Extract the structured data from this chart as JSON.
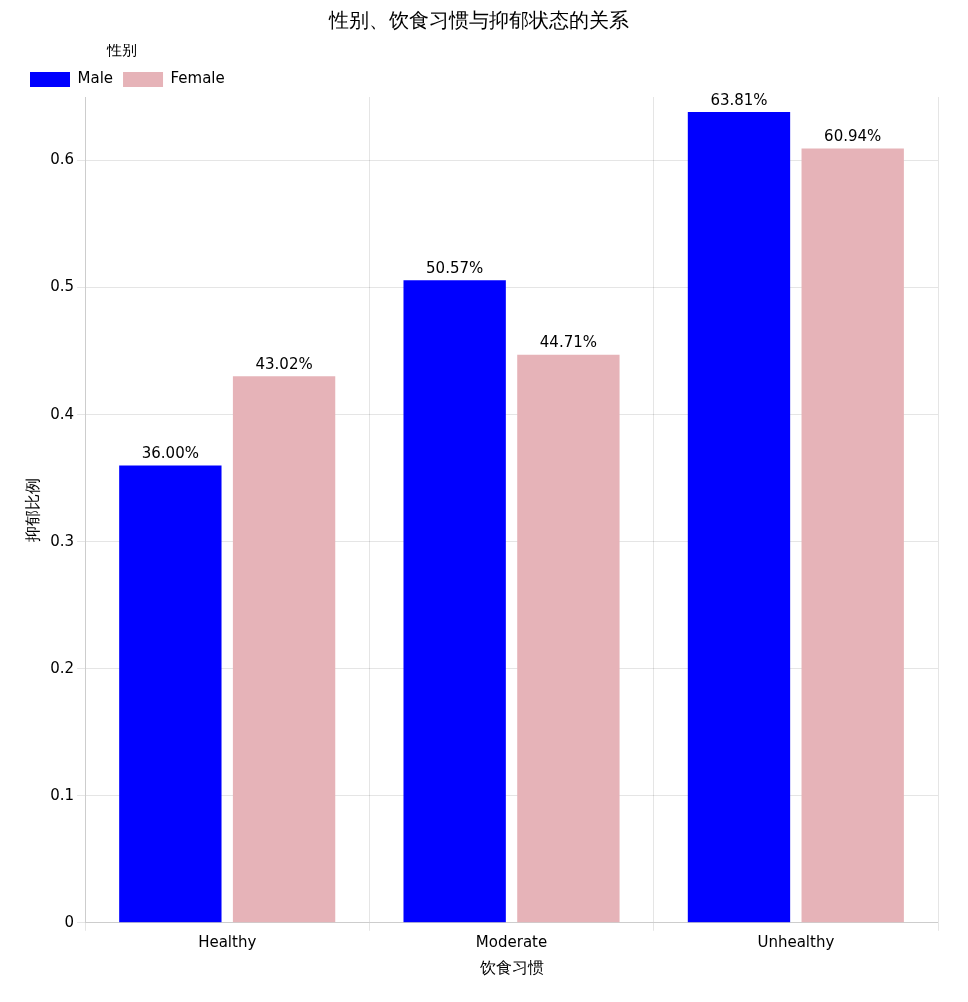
{
  "chart_data": {
    "type": "bar",
    "title": "性别、饮食习惯与抑郁状态的关系",
    "xlabel": "饮食习惯",
    "ylabel": "抑郁比例",
    "legend_title": "性别",
    "categories": [
      "Healthy",
      "Moderate",
      "Unhealthy"
    ],
    "series": [
      {
        "name": "Male",
        "color": "#0000ff",
        "values": [
          0.36,
          0.5057,
          0.6381
        ],
        "value_labels": [
          "36.00%",
          "50.57%",
          "63.81%"
        ]
      },
      {
        "name": "Female",
        "color": "#e6b3b8",
        "values": [
          0.4302,
          0.4471,
          0.6094
        ],
        "value_labels": [
          "43.02%",
          "44.71%",
          "60.94%"
        ]
      }
    ],
    "ylim": [
      0,
      0.65
    ],
    "yticks": [
      0,
      0.1,
      0.2,
      0.3,
      0.4,
      0.5,
      0.6
    ],
    "grid": true,
    "legend": "top left"
  }
}
